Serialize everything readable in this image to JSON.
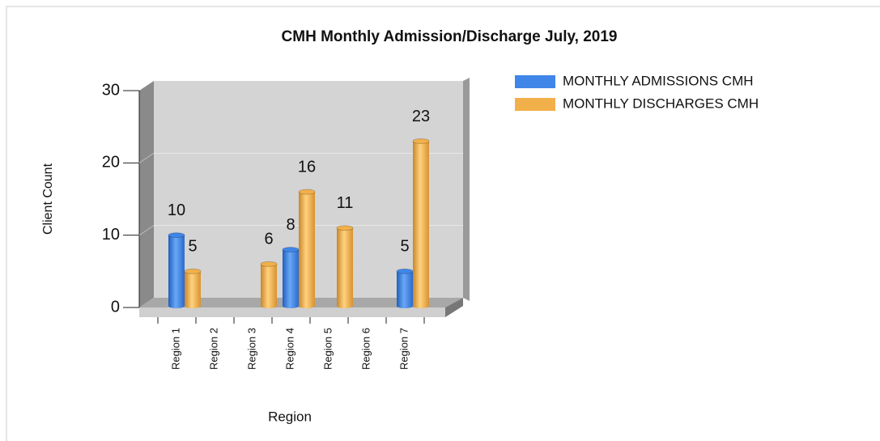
{
  "chart_data": {
    "type": "bar3d",
    "title": "CMH Monthly Admission/Discharge July, 2019",
    "x_label": "Region",
    "y_label": "Client Count",
    "categories": [
      "Region 1",
      "Region 2",
      "Region 3",
      "Region 4",
      "Region 5",
      "Region 6",
      "Region 7"
    ],
    "series": [
      {
        "name": "MONTHLY ADMISSIONS CMH",
        "color": "#3f86e8",
        "values": [
          10,
          null,
          null,
          8,
          null,
          null,
          5
        ]
      },
      {
        "name": "MONTHLY DISCHARGES CMH",
        "color": "#f2b04a",
        "values": [
          5,
          null,
          6,
          16,
          11,
          null,
          23
        ]
      }
    ],
    "ylim": [
      0,
      30
    ],
    "yticks": [
      0,
      10,
      20,
      30
    ],
    "grid": true,
    "legend": "top-right"
  }
}
